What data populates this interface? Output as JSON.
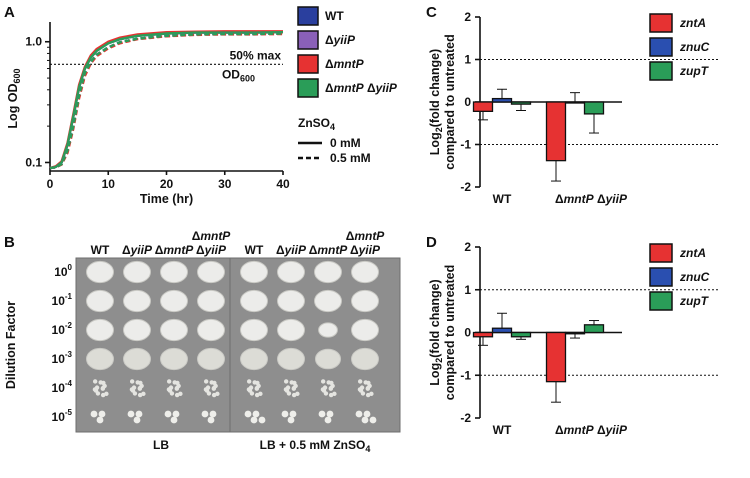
{
  "chart_data": [
    {
      "panel": "A",
      "type": "line",
      "xlabel": "Time (hr)",
      "ylabel": "Log OD",
      "ylabel_sub": "600",
      "xlim": [
        0,
        40
      ],
      "xticks": [
        "0",
        "10",
        "20",
        "30",
        "40"
      ],
      "yscale": "log",
      "ylim": [
        0.085,
        1.35
      ],
      "yticks": [
        {
          "value": 0.1,
          "label": "0.1"
        },
        {
          "value": 1.0,
          "label": "1.0"
        }
      ],
      "reference_line": {
        "y": 0.65,
        "label": "50% max",
        "label2": "OD",
        "label2_sub": "600"
      },
      "linestyle_legend": {
        "title": "ZnSO",
        "title_sub": "4",
        "items": [
          {
            "label": "0 mM",
            "dash": "solid"
          },
          {
            "label": "0.5 mM",
            "dash": "dashed"
          }
        ]
      },
      "time": [
        0,
        1,
        2,
        3,
        4,
        5,
        6,
        7,
        8,
        10,
        12,
        15,
        20,
        25,
        30,
        35,
        40
      ],
      "series": [
        {
          "name": "WT",
          "strain": "WT",
          "zn": "0 mM",
          "color": "#2a3f9e",
          "values": [
            0.09,
            0.092,
            0.1,
            0.14,
            0.24,
            0.42,
            0.6,
            0.74,
            0.84,
            0.97,
            1.05,
            1.12,
            1.17,
            1.19,
            1.19,
            1.19,
            1.2
          ]
        },
        {
          "name": "ΔyiiP",
          "strain": "yiiP",
          "zn": "0 mM",
          "color": "#8a60b8",
          "values": [
            0.09,
            0.092,
            0.1,
            0.14,
            0.24,
            0.42,
            0.6,
            0.74,
            0.84,
            0.98,
            1.06,
            1.13,
            1.18,
            1.2,
            1.2,
            1.2,
            1.21
          ]
        },
        {
          "name": "ΔmntP",
          "strain": "mntP",
          "zn": "0 mM",
          "color": "#e63232",
          "values": [
            0.09,
            0.093,
            0.102,
            0.145,
            0.25,
            0.44,
            0.62,
            0.77,
            0.87,
            1.0,
            1.08,
            1.15,
            1.2,
            1.21,
            1.22,
            1.22,
            1.22
          ]
        },
        {
          "name": "ΔmntP ΔyiiP",
          "strain": "mntP yiiP",
          "zn": "0 mM",
          "color": "#2a9d58",
          "values": [
            0.09,
            0.092,
            0.1,
            0.14,
            0.24,
            0.42,
            0.6,
            0.74,
            0.84,
            0.97,
            1.05,
            1.12,
            1.17,
            1.19,
            1.19,
            1.19,
            1.2
          ]
        },
        {
          "name": "WT",
          "strain": "WT",
          "zn": "0.5 mM",
          "color": "#2a3f9e",
          "values": [
            0.09,
            0.091,
            0.097,
            0.125,
            0.2,
            0.36,
            0.55,
            0.68,
            0.78,
            0.9,
            0.99,
            1.06,
            1.12,
            1.15,
            1.16,
            1.16,
            1.17
          ]
        },
        {
          "name": "ΔyiiP",
          "strain": "yiiP",
          "zn": "0.5 mM",
          "color": "#8a60b8",
          "values": [
            0.09,
            0.091,
            0.097,
            0.125,
            0.2,
            0.36,
            0.55,
            0.68,
            0.78,
            0.9,
            0.99,
            1.06,
            1.12,
            1.15,
            1.16,
            1.16,
            1.17
          ]
        },
        {
          "name": "ΔmntP",
          "strain": "mntP",
          "zn": "0.5 mM",
          "color": "#e63232",
          "values": [
            0.09,
            0.091,
            0.096,
            0.12,
            0.19,
            0.34,
            0.52,
            0.66,
            0.76,
            0.88,
            0.97,
            1.05,
            1.11,
            1.14,
            1.15,
            1.15,
            1.16
          ]
        },
        {
          "name": "ΔmntP ΔyiiP",
          "strain": "mntP yiiP",
          "zn": "0.5 mM",
          "color": "#2a9d58",
          "values": [
            0.09,
            0.091,
            0.097,
            0.125,
            0.2,
            0.36,
            0.55,
            0.68,
            0.78,
            0.9,
            0.99,
            1.06,
            1.12,
            1.15,
            1.16,
            1.16,
            1.17
          ]
        }
      ],
      "legend": [
        {
          "label": "WT",
          "delta": false,
          "color": "#2a3f9e"
        },
        {
          "label": "yiiP",
          "delta": true,
          "color": "#8a60b8"
        },
        {
          "label": "mntP",
          "delta": true,
          "color": "#e63232"
        },
        {
          "label": "mntP",
          "label2": "yiiP",
          "delta": true,
          "color": "#2a9d58"
        }
      ]
    },
    {
      "panel": "B",
      "type": "image",
      "ylabel": "Dilution Factor",
      "dilutions": [
        {
          "base": "10",
          "exp": "0"
        },
        {
          "base": "10",
          "exp": "-1"
        },
        {
          "base": "10",
          "exp": "-2"
        },
        {
          "base": "10",
          "exp": "-3"
        },
        {
          "base": "10",
          "exp": "-4"
        },
        {
          "base": "10",
          "exp": "-5"
        }
      ],
      "plates": [
        {
          "caption": "LB",
          "caption_sub": "",
          "columns": [
            {
              "top": "",
              "main": "WT"
            },
            {
              "top": "",
              "main": "yiiP"
            },
            {
              "top": "",
              "main": "mntP"
            },
            {
              "top": "mntP",
              "main": "yiiP"
            }
          ],
          "growth": [
            [
              1,
              1,
              1,
              1
            ],
            [
              1,
              1,
              1,
              1
            ],
            [
              1,
              1,
              1,
              1
            ],
            [
              1,
              1,
              1,
              1
            ],
            [
              0.6,
              0.6,
              0.6,
              0.6
            ],
            [
              0.2,
              0.15,
              0.15,
              0.2
            ]
          ]
        },
        {
          "caption": "LB + 0.5 mM ZnSO",
          "caption_sub": "4",
          "columns": [
            {
              "top": "",
              "main": "WT"
            },
            {
              "top": "",
              "main": "yiiP"
            },
            {
              "top": "",
              "main": "mntP"
            },
            {
              "top": "mntP",
              "main": "yiiP"
            }
          ],
          "growth": [
            [
              1,
              1,
              1,
              1
            ],
            [
              1,
              1,
              1,
              1
            ],
            [
              1,
              1,
              0.45,
              1
            ],
            [
              1,
              1,
              0.85,
              1
            ],
            [
              0.6,
              0.6,
              0.6,
              0.6
            ],
            [
              0.25,
              0.15,
              0.15,
              0.25
            ]
          ]
        }
      ]
    },
    {
      "panel": "C",
      "type": "bar",
      "ylabel_line1": "Log",
      "ylabel_sub": "2",
      "ylabel_line1_rest": "(fold change)",
      "ylabel_line2": "compared to untreated",
      "ylim": [
        -2,
        2
      ],
      "yticks": [
        "-2",
        "-1",
        "0",
        "1",
        "2"
      ],
      "reference_lines": [
        1,
        -1
      ],
      "categories": [
        {
          "label": "WT",
          "delta": false
        },
        {
          "label": "mntP",
          "label2": "yiiP",
          "delta": true
        }
      ],
      "series": [
        {
          "name": "zntA",
          "color": "#e63232",
          "values": [
            -0.22,
            -1.38
          ],
          "errors": [
            0.2,
            0.48
          ]
        },
        {
          "name": "znuC",
          "color": "#2a4fb0",
          "values": [
            0.08,
            0.0
          ],
          "errors": [
            0.22,
            0.22
          ]
        },
        {
          "name": "zupT",
          "color": "#2a9d58",
          "values": [
            -0.05,
            -0.28
          ],
          "errors": [
            0.15,
            0.45
          ]
        }
      ]
    },
    {
      "panel": "D",
      "type": "bar",
      "ylabel_line1": "Log",
      "ylabel_sub": "2",
      "ylabel_line1_rest": "(fold change)",
      "ylabel_line2": "compared to untreated",
      "ylim": [
        -2,
        2
      ],
      "yticks": [
        "-2",
        "-1",
        "0",
        "1",
        "2"
      ],
      "reference_lines": [
        1,
        -1
      ],
      "categories": [
        {
          "label": "WT",
          "delta": false
        },
        {
          "label": "mntP",
          "label2": "yiiP",
          "delta": true
        }
      ],
      "series": [
        {
          "name": "zntA",
          "color": "#e63232",
          "values": [
            -0.1,
            -1.15
          ],
          "errors": [
            0.2,
            0.48
          ]
        },
        {
          "name": "znuC",
          "color": "#2a4fb0",
          "values": [
            0.1,
            -0.03
          ],
          "errors": [
            0.35,
            0.1
          ]
        },
        {
          "name": "zupT",
          "color": "#2a9d58",
          "values": [
            -0.1,
            0.18
          ],
          "errors": [
            0.06,
            0.1
          ]
        }
      ]
    }
  ]
}
